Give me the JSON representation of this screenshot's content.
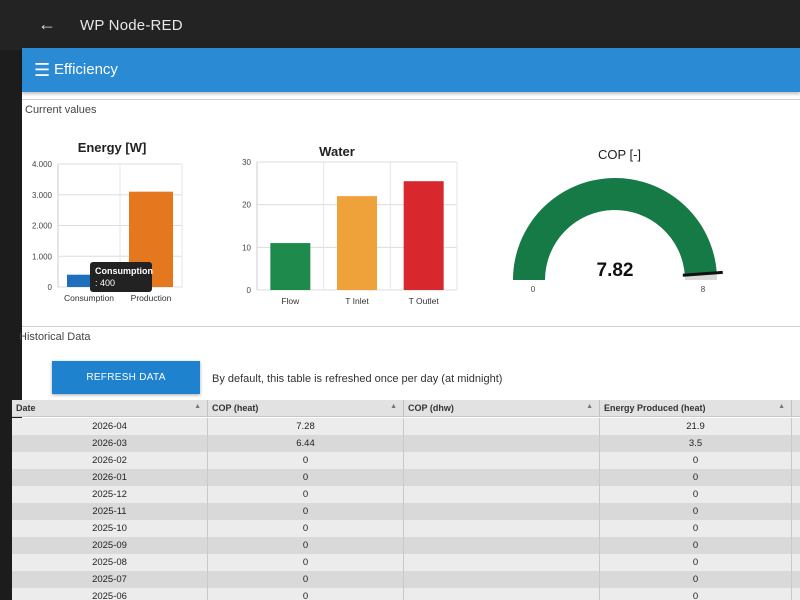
{
  "app": {
    "title": "WP Node-RED",
    "back_icon": "arrow-left-icon"
  },
  "appbar": {
    "title": "Efficiency",
    "menu_icon": "hamburger-menu-icon",
    "color": "#2a8ad4"
  },
  "current_values": {
    "label": "Current values"
  },
  "historical": {
    "label": "Historical Data",
    "refresh_label": "REFRESH DATA",
    "note": "By default, this table is refreshed once per day (at midnight)",
    "columns": [
      "Date",
      "COP (heat)",
      "COP (dhw)",
      "Energy Produced (heat)"
    ],
    "rows": [
      {
        "date": "2026-04",
        "cop_heat": "7.28",
        "cop_dhw": "",
        "energy_heat": "21.9"
      },
      {
        "date": "2026-03",
        "cop_heat": "6.44",
        "cop_dhw": "",
        "energy_heat": "3.5"
      },
      {
        "date": "2026-02",
        "cop_heat": "0",
        "cop_dhw": "",
        "energy_heat": "0"
      },
      {
        "date": "2026-01",
        "cop_heat": "0",
        "cop_dhw": "",
        "energy_heat": "0"
      },
      {
        "date": "2025-12",
        "cop_heat": "0",
        "cop_dhw": "",
        "energy_heat": "0"
      },
      {
        "date": "2025-11",
        "cop_heat": "0",
        "cop_dhw": "",
        "energy_heat": "0"
      },
      {
        "date": "2025-10",
        "cop_heat": "0",
        "cop_dhw": "",
        "energy_heat": "0"
      },
      {
        "date": "2025-09",
        "cop_heat": "0",
        "cop_dhw": "",
        "energy_heat": "0"
      },
      {
        "date": "2025-08",
        "cop_heat": "0",
        "cop_dhw": "",
        "energy_heat": "0"
      },
      {
        "date": "2025-07",
        "cop_heat": "0",
        "cop_dhw": "",
        "energy_heat": "0"
      },
      {
        "date": "2025-06",
        "cop_heat": "0",
        "cop_dhw": "",
        "energy_heat": "0"
      }
    ]
  },
  "tooltip": {
    "title": "Consumption",
    "value": ": 400"
  },
  "chart_data": [
    {
      "type": "bar",
      "title": "Energy [W]",
      "categories": [
        "Consumption",
        "Production"
      ],
      "values": [
        400,
        3100
      ],
      "colors": [
        "#1f6fbf",
        "#e5771e"
      ],
      "ylim": [
        0,
        4000
      ],
      "yticks": [
        0,
        1000,
        2000,
        3000,
        4000
      ],
      "ytick_labels": [
        "0",
        "1.000",
        "2.000",
        "3.000",
        "4.000"
      ],
      "grid": true
    },
    {
      "type": "bar",
      "title": "Water",
      "categories": [
        "Flow",
        "T Inlet",
        "T Outlet"
      ],
      "values": [
        11,
        22,
        25.5
      ],
      "colors": [
        "#1e8a4c",
        "#f0a23a",
        "#d8282e"
      ],
      "ylim": [
        0,
        30
      ],
      "yticks": [
        0,
        10,
        20,
        30
      ],
      "ytick_labels": [
        "0",
        "10",
        "20",
        "30"
      ],
      "grid": true
    },
    {
      "type": "gauge",
      "title": "COP [-]",
      "value": 7.82,
      "value_label": "7.82",
      "min": 0,
      "max": 8,
      "min_label": "0",
      "max_label": "8",
      "color": "#157a45"
    }
  ]
}
